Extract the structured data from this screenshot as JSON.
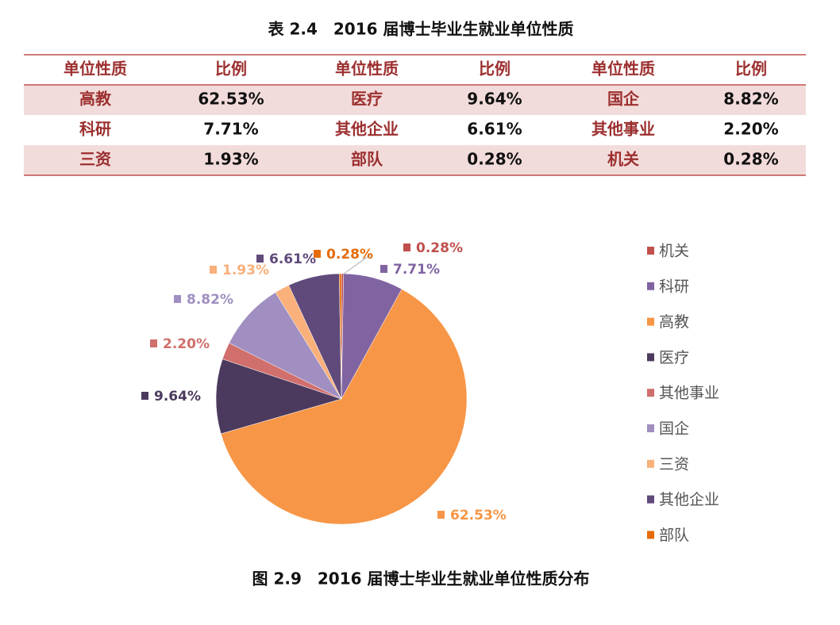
{
  "table": {
    "title": "表 2.4　2016 届博士毕业生就业单位性质",
    "header": [
      "单位性质",
      "比例",
      "单位性质",
      "比例",
      "单位性质",
      "比例"
    ],
    "rows": [
      [
        "高教",
        "62.53%",
        "医疗",
        "9.64%",
        "国企",
        "8.82%"
      ],
      [
        "科研",
        "7.71%",
        "其他企业",
        "6.61%",
        "其他事业",
        "2.20%"
      ],
      [
        "三资",
        "1.93%",
        "部队",
        "0.28%",
        "机关",
        "0.28%"
      ]
    ]
  },
  "chart_data": {
    "type": "pie",
    "categories": [
      "机关",
      "科研",
      "高教",
      "医疗",
      "其他事业",
      "国企",
      "三资",
      "其他企业",
      "部队"
    ],
    "values": [
      0.28,
      7.71,
      62.53,
      9.64,
      2.2,
      8.82,
      1.93,
      6.61,
      0.28
    ],
    "value_labels": [
      "0.28%",
      "7.71%",
      "62.53%",
      "9.64%",
      "2.20%",
      "8.82%",
      "1.93%",
      "6.61%",
      "0.28%"
    ],
    "colors": [
      "#c0504d",
      "#8064a2",
      "#f79646",
      "#4b3a5e",
      "#d06f6c",
      "#a08fc0",
      "#f9b07a",
      "#604a7b",
      "#e46c0a"
    ],
    "legend": "right"
  },
  "caption": "图 2.9　2016 届博士毕业生就业单位性质分布"
}
